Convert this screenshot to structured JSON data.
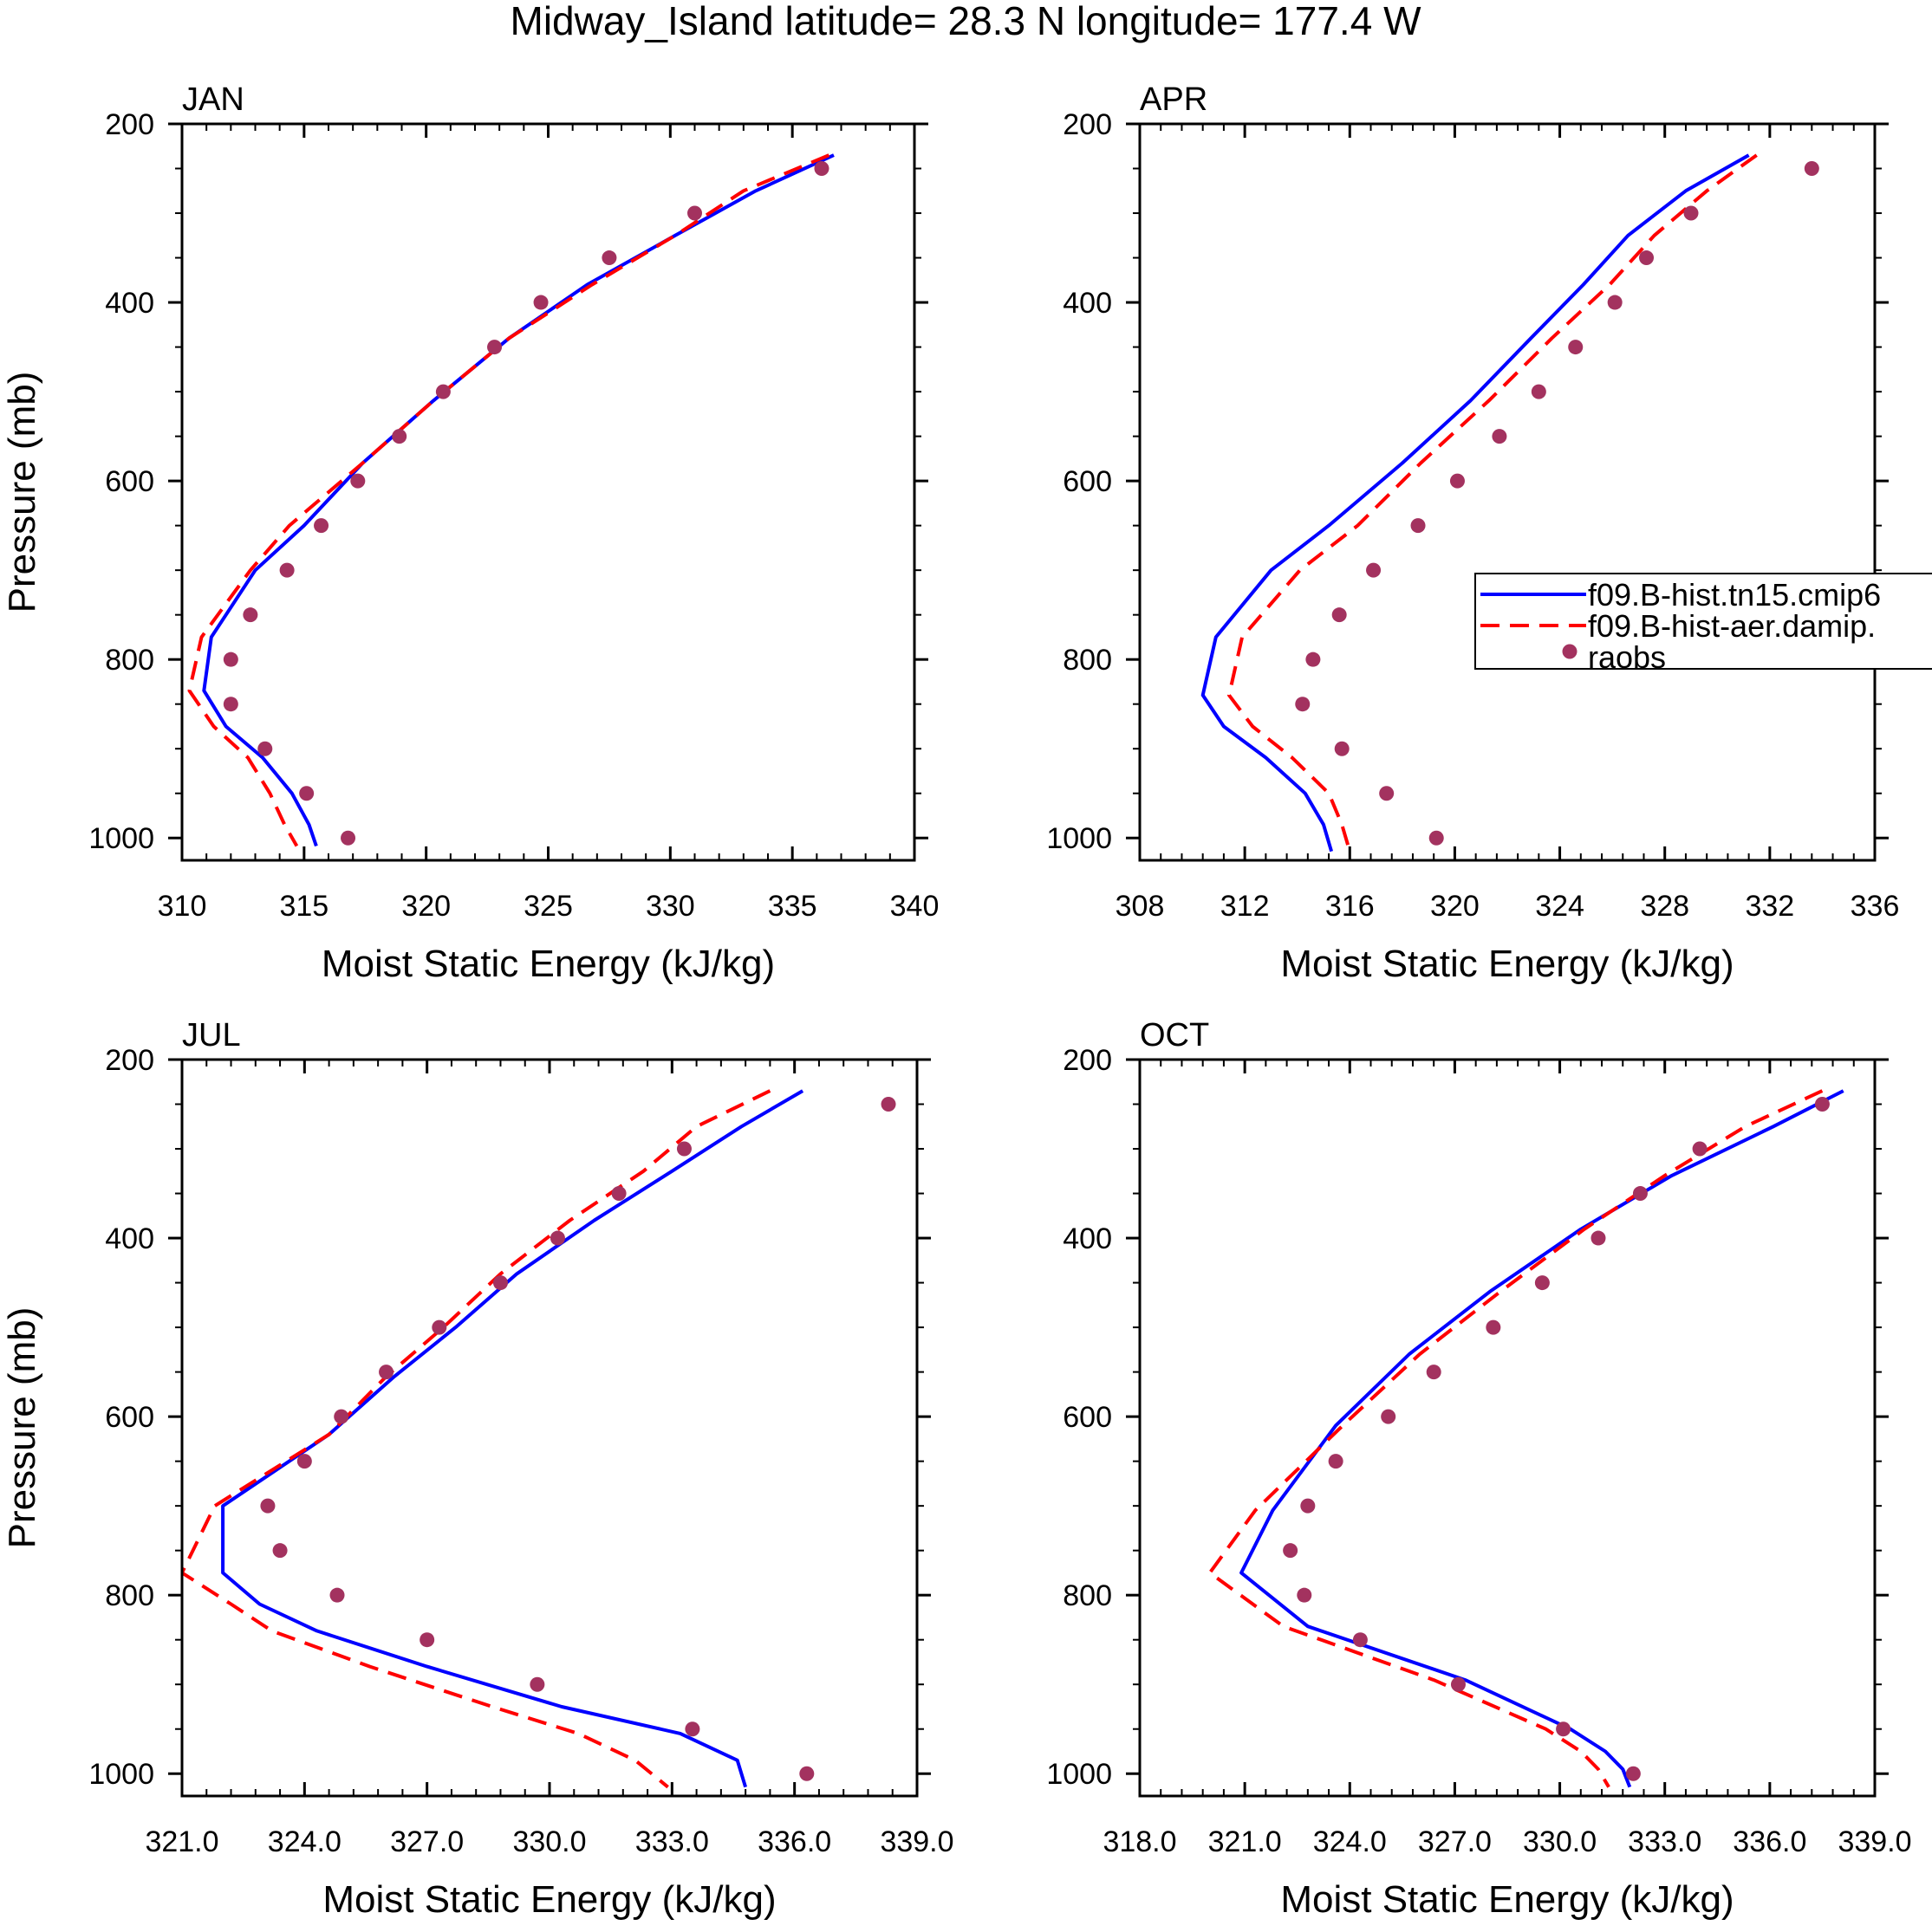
{
  "figure": {
    "title": "Midway_Island  latitude= 28.3 N longitude= 177.4 W",
    "colors": {
      "model1": "#0000ff",
      "model2": "#ff0000",
      "raobs": "#a3325f",
      "axis": "#000000"
    }
  },
  "chart_data": [
    {
      "type": "line",
      "title": "JAN",
      "xlabel": "Moist Static Energy (kJ/kg)",
      "ylabel": "Pressure (mb)",
      "xlim": [
        310,
        340
      ],
      "ylim": [
        200,
        1025
      ],
      "xticks": [
        "310",
        "315",
        "320",
        "325",
        "330",
        "335",
        "340"
      ],
      "yticks": [
        "200",
        "400",
        "600",
        "800",
        "1000"
      ],
      "series": [
        {
          "name": "f09.B-hist.tn15.cmip6",
          "style": "solid",
          "x": [
            336.7,
            333.5,
            330.2,
            326.6,
            323.4,
            320.3,
            317.4,
            315.0,
            313.0,
            311.2,
            310.9,
            311.8,
            313.3,
            314.5,
            315.2,
            315.5
          ],
          "y": [
            235,
            275,
            325,
            380,
            440,
            510,
            580,
            650,
            700,
            775,
            835,
            875,
            910,
            950,
            985,
            1009
          ]
        },
        {
          "name": "f09.B-hist-aer.damip.",
          "style": "dashed",
          "x": [
            336.5,
            333.0,
            330.2,
            326.8,
            323.4,
            320.3,
            317.4,
            314.4,
            312.8,
            310.8,
            310.3,
            311.3,
            312.7,
            313.6,
            314.2,
            314.7
          ],
          "y": [
            235,
            275,
            325,
            380,
            440,
            510,
            580,
            650,
            700,
            775,
            835,
            875,
            910,
            950,
            985,
            1009
          ]
        },
        {
          "name": "raobs",
          "style": "points",
          "x": [
            336.2,
            331.0,
            327.5,
            324.7,
            322.8,
            320.7,
            318.9,
            317.2,
            315.7,
            314.3,
            312.8,
            312.0,
            312.0,
            313.4,
            315.1,
            316.8
          ],
          "y": [
            250,
            300,
            350,
            400,
            450,
            500,
            550,
            600,
            650,
            700,
            750,
            800,
            850,
            900,
            950,
            1000
          ]
        }
      ]
    },
    {
      "type": "line",
      "title": "APR",
      "xlabel": "Moist Static Energy (kJ/kg)",
      "ylabel": "",
      "xlim": [
        308,
        336
      ],
      "ylim": [
        200,
        1025
      ],
      "xticks": [
        "308",
        "312",
        "316",
        "320",
        "324",
        "328",
        "332",
        "336"
      ],
      "yticks": [
        "200",
        "400",
        "600",
        "800",
        "1000"
      ],
      "series": [
        {
          "name": "f09.B-hist.tn15.cmip6",
          "style": "solid",
          "x": [
            331.2,
            328.8,
            326.6,
            324.9,
            322.9,
            320.6,
            318.0,
            315.2,
            313.0,
            310.9,
            310.4,
            311.2,
            312.8,
            314.3,
            315.0,
            315.3
          ],
          "y": [
            235,
            275,
            325,
            380,
            440,
            510,
            580,
            650,
            700,
            775,
            840,
            875,
            910,
            950,
            985,
            1015
          ]
        },
        {
          "name": "f09.B-hist-aer.damip.",
          "style": "dashed",
          "x": [
            331.5,
            329.6,
            327.6,
            325.9,
            323.7,
            321.3,
            318.7,
            316.3,
            314.1,
            311.9,
            311.4,
            312.3,
            313.8,
            315.2,
            315.7,
            316.0
          ],
          "y": [
            235,
            275,
            325,
            380,
            440,
            510,
            580,
            650,
            700,
            775,
            840,
            875,
            910,
            950,
            985,
            1015
          ]
        },
        {
          "name": "raobs",
          "style": "points",
          "x": [
            333.6,
            329.0,
            327.3,
            326.1,
            324.6,
            323.2,
            321.7,
            320.1,
            318.6,
            316.9,
            315.6,
            314.6,
            314.2,
            315.7,
            317.4,
            319.3
          ],
          "y": [
            250,
            300,
            350,
            400,
            450,
            500,
            550,
            600,
            650,
            700,
            750,
            800,
            850,
            900,
            950,
            1000
          ]
        }
      ],
      "legend": {
        "position": "right",
        "entries": [
          "f09.B-hist.tn15.cmip6",
          "f09.B-hist-aer.damip.",
          "raobs"
        ]
      }
    },
    {
      "type": "line",
      "title": "JUL",
      "xlabel": "Moist Static Energy (kJ/kg)",
      "ylabel": "Pressure (mb)",
      "xlim": [
        321,
        339
      ],
      "ylim": [
        200,
        1025
      ],
      "xticks": [
        "321.0",
        "324.0",
        "327.0",
        "330.0",
        "333.0",
        "336.0",
        "339.0"
      ],
      "yticks": [
        "200",
        "400",
        "600",
        "800",
        "1000"
      ],
      "series": [
        {
          "name": "f09.B-hist.tn15.cmip6",
          "style": "solid",
          "x": [
            336.2,
            334.7,
            333.0,
            331.1,
            329.2,
            327.7,
            326.2,
            324.6,
            322.0,
            322.0,
            322.9,
            324.3,
            327.0,
            330.3,
            333.2,
            334.6,
            334.8
          ],
          "y": [
            235,
            275,
            325,
            380,
            440,
            500,
            555,
            620,
            700,
            775,
            810,
            840,
            880,
            925,
            955,
            985,
            1015
          ]
        },
        {
          "name": "f09.B-hist-aer.damip.",
          "style": "dashed",
          "x": [
            335.4,
            333.6,
            332.3,
            330.5,
            328.8,
            327.4,
            326.0,
            324.6,
            321.8,
            321.0,
            322.2,
            323.2,
            325.6,
            328.6,
            330.7,
            332.1,
            332.9
          ],
          "y": [
            235,
            275,
            325,
            380,
            440,
            500,
            555,
            620,
            700,
            775,
            810,
            840,
            880,
            925,
            955,
            985,
            1015
          ]
        },
        {
          "name": "raobs",
          "style": "points",
          "x": [
            338.3,
            333.3,
            331.7,
            330.2,
            328.8,
            327.3,
            326.0,
            324.9,
            324.0,
            323.1,
            323.4,
            324.8,
            327.0,
            329.7,
            333.5,
            336.3
          ],
          "y": [
            250,
            300,
            350,
            400,
            450,
            500,
            550,
            600,
            650,
            700,
            750,
            800,
            850,
            900,
            950,
            1000
          ]
        }
      ]
    },
    {
      "type": "line",
      "title": "OCT",
      "xlabel": "Moist Static Energy (kJ/kg)",
      "ylabel": "",
      "xlim": [
        318,
        339
      ],
      "ylim": [
        200,
        1025
      ],
      "xticks": [
        "318.0",
        "321.0",
        "324.0",
        "327.0",
        "330.0",
        "333.0",
        "336.0",
        "339.0"
      ],
      "yticks": [
        "200",
        "400",
        "600",
        "800",
        "1000"
      ],
      "series": [
        {
          "name": "f09.B-hist.tn15.cmip6",
          "style": "solid",
          "x": [
            338.1,
            336.1,
            333.2,
            330.6,
            328.0,
            325.7,
            323.6,
            321.8,
            320.9,
            322.8,
            327.3,
            330.3,
            331.3,
            331.8,
            332.0
          ],
          "y": [
            235,
            275,
            330,
            390,
            460,
            530,
            610,
            705,
            775,
            835,
            895,
            950,
            975,
            995,
            1015
          ]
        },
        {
          "name": "f09.B-hist-aer.damip.",
          "style": "dashed",
          "x": [
            337.5,
            335.3,
            333.0,
            330.7,
            328.3,
            326.0,
            323.8,
            321.3,
            320.0,
            322.1,
            326.4,
            329.6,
            330.6,
            331.1,
            331.4
          ],
          "y": [
            235,
            275,
            330,
            390,
            460,
            530,
            610,
            705,
            775,
            835,
            895,
            950,
            975,
            995,
            1015
          ]
        },
        {
          "name": "raobs",
          "style": "points",
          "x": [
            337.5,
            334.0,
            332.3,
            331.1,
            329.5,
            328.1,
            326.4,
            325.1,
            323.6,
            322.8,
            322.3,
            322.7,
            324.3,
            327.1,
            330.1,
            332.1
          ],
          "y": [
            250,
            300,
            350,
            400,
            450,
            500,
            550,
            600,
            650,
            700,
            750,
            800,
            850,
            900,
            950,
            1000
          ]
        }
      ]
    }
  ]
}
